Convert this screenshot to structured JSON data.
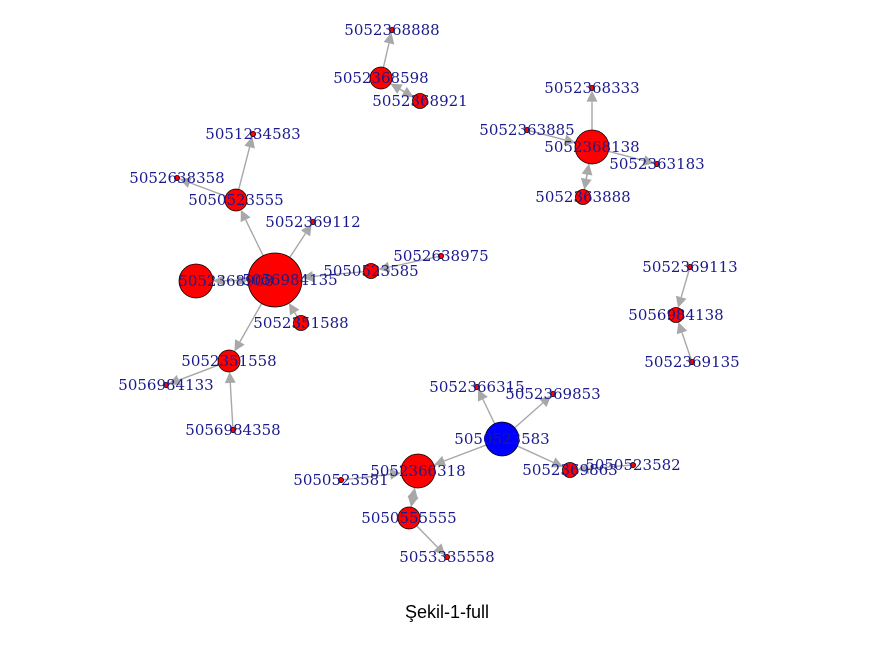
{
  "caption": "Şekil-1-full",
  "colors": {
    "node": "#ff0000",
    "highlight": "#0000ff",
    "edge": "#a8a8a8",
    "label": "#1a1a8c"
  },
  "nodes": [
    {
      "id": "5052368888",
      "label": "5052368888",
      "size": "small"
    },
    {
      "id": "5052368598",
      "label": "5052368598",
      "size": "medium"
    },
    {
      "id": "5052368921",
      "label": "5052368921",
      "size": "small-medium"
    },
    {
      "id": "5052368333",
      "label": "5052368333",
      "size": "small"
    },
    {
      "id": "5052363885",
      "label": "5052363885",
      "size": "small"
    },
    {
      "id": "5052368138",
      "label": "5052368138",
      "size": "large"
    },
    {
      "id": "5052363183",
      "label": "5052363183",
      "size": "small"
    },
    {
      "id": "5052363888",
      "label": "5052363888",
      "size": "small-medium"
    },
    {
      "id": "5051234583",
      "label": "5051234583",
      "size": "small"
    },
    {
      "id": "5052638358",
      "label": "5052638358",
      "size": "small"
    },
    {
      "id": "5050523555",
      "label": "5050523555",
      "size": "medium"
    },
    {
      "id": "5052369112",
      "label": "5052369112",
      "size": "small"
    },
    {
      "id": "5052638975",
      "label": "5052638975",
      "size": "small"
    },
    {
      "id": "5052368908",
      "label": "5052368908",
      "size": "large"
    },
    {
      "id": "5056984135",
      "label": "5056984135",
      "size": "xlarge"
    },
    {
      "id": "5050523585",
      "label": "5050523585",
      "size": "small-medium"
    },
    {
      "id": "5052351588",
      "label": "5052351588",
      "size": "small-medium"
    },
    {
      "id": "5052351558",
      "label": "5052351558",
      "size": "medium"
    },
    {
      "id": "5056984133",
      "label": "5056984133",
      "size": "small"
    },
    {
      "id": "5056984358",
      "label": "5056984358",
      "size": "small"
    },
    {
      "id": "5052369113",
      "label": "5052369113",
      "size": "small"
    },
    {
      "id": "5056984138",
      "label": "5056984138",
      "size": "small-medium"
    },
    {
      "id": "5052369135",
      "label": "5052369135",
      "size": "small"
    },
    {
      "id": "5052366315",
      "label": "5052366315",
      "size": "small"
    },
    {
      "id": "5052369853",
      "label": "5052369853",
      "size": "small"
    },
    {
      "id": "5050523583",
      "label": "5050523583",
      "size": "large",
      "highlight": true
    },
    {
      "id": "5052369863",
      "label": "5052369863",
      "size": "small-medium"
    },
    {
      "id": "5050523582",
      "label": "5050523582",
      "size": "small"
    },
    {
      "id": "5050523581",
      "label": "5050523581",
      "size": "small"
    },
    {
      "id": "5052366318",
      "label": "5052366318",
      "size": "large"
    },
    {
      "id": "5050555555",
      "label": "5050555555",
      "size": "medium"
    },
    {
      "id": "5053335558",
      "label": "5053335558",
      "size": "small"
    }
  ],
  "edges": [
    [
      "5052368598",
      "5052368888"
    ],
    [
      "5052368921",
      "5052368598"
    ],
    [
      "5052368598",
      "5052368921"
    ],
    [
      "5052368138",
      "5052368333"
    ],
    [
      "5052363885",
      "5052368138"
    ],
    [
      "5052368138",
      "5052363183"
    ],
    [
      "5052368138",
      "5052363888"
    ],
    [
      "5052363888",
      "5052368138"
    ],
    [
      "5050523555",
      "5051234583"
    ],
    [
      "5050523555",
      "5052638358"
    ],
    [
      "5056984135",
      "5050523555"
    ],
    [
      "5056984135",
      "5052369112"
    ],
    [
      "5050523585",
      "5056984135"
    ],
    [
      "5052638975",
      "5050523585"
    ],
    [
      "5056984135",
      "5052368908"
    ],
    [
      "5052368908",
      "5056984135"
    ],
    [
      "5052351588",
      "5056984135"
    ],
    [
      "5056984135",
      "5052351558"
    ],
    [
      "5052351558",
      "5056984133"
    ],
    [
      "5056984358",
      "5052351558"
    ],
    [
      "5052369113",
      "5056984138"
    ],
    [
      "5052369135",
      "5056984138"
    ],
    [
      "5050523583",
      "5052366315"
    ],
    [
      "5050523583",
      "5052369853"
    ],
    [
      "5050523583",
      "5052369863"
    ],
    [
      "5050523582",
      "5052369863"
    ],
    [
      "5050523583",
      "5052366318"
    ],
    [
      "5050523581",
      "5052366318"
    ],
    [
      "5052366318",
      "5050555555"
    ],
    [
      "5050555555",
      "5052366318"
    ],
    [
      "5050555555",
      "5053335558"
    ]
  ]
}
